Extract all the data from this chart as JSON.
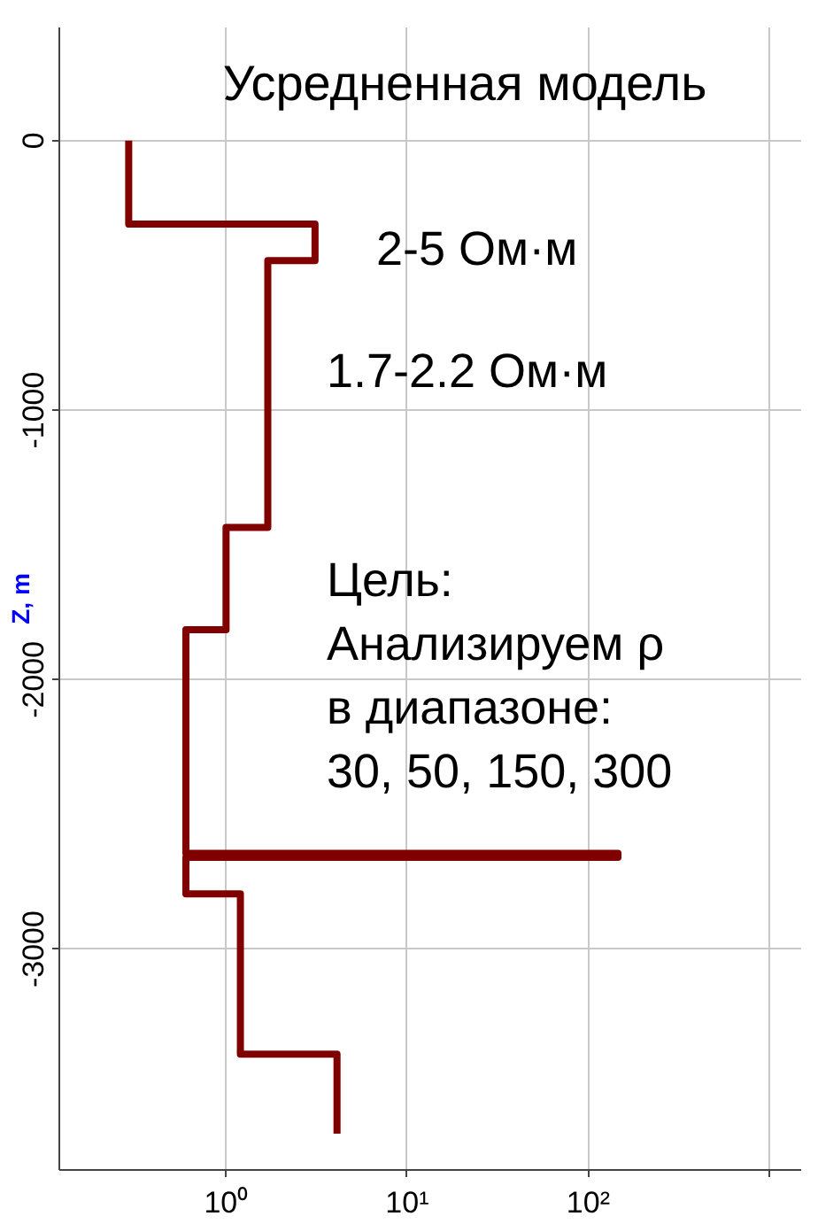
{
  "chart_data": {
    "type": "line",
    "title": "Усредненная модель",
    "ylabel": "Z, m",
    "log": "x",
    "grid": true,
    "line_style": "solid",
    "marker": "none",
    "xlim": [
      0.12,
      1500
    ],
    "xticks": [
      {
        "value": 1,
        "label": "10⁰"
      },
      {
        "value": 10,
        "label": "10¹"
      },
      {
        "value": 100,
        "label": "10²"
      },
      {
        "value": 1000,
        "label": null
      }
    ],
    "ylim": [
      -3820,
      420
    ],
    "yticks": [
      0,
      -1000,
      -2000,
      -3000
    ],
    "series": [
      {
        "color": "#800000",
        "x": [
          0.29,
          0.29,
          3.1,
          3.1,
          1.7,
          1.7,
          1.0,
          1.0,
          0.6,
          0.6,
          146,
          146,
          0.6,
          0.6,
          1.2,
          1.2,
          4.1,
          4.1
        ],
        "values": [
          0,
          -310,
          -310,
          -445,
          -445,
          -1435,
          -1435,
          -1815,
          -1815,
          -2645,
          -2645,
          -2660,
          -2660,
          -2795,
          -2795,
          -3390,
          -3390,
          -3685
        ]
      }
    ],
    "annotations": [
      "2-5 Ом·м",
      "1.7-2.2 Ом·м",
      "Цель:\nАнализируем ρ\nв диапазоне:\n30, 50, 150, 300"
    ]
  }
}
